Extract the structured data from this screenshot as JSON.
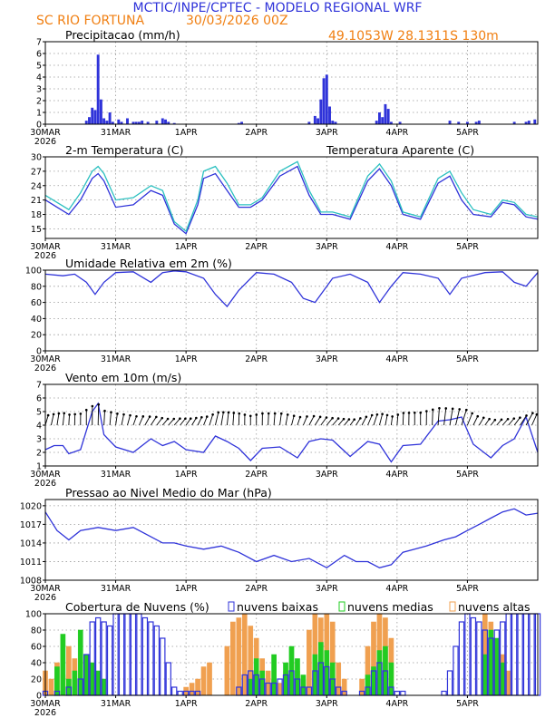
{
  "header": {
    "title": "MCTIC/INPE/CPTEC - MODELO REGIONAL WRF",
    "location": "SC RIO FORTUNA",
    "run": "30/03/2026 00Z",
    "coords": "49.1053W  28.1311S  130m",
    "title_color": "#2f33d9",
    "info_color": "#f07f12"
  },
  "x_axis": {
    "ticks": [
      {
        "label": "30MAR",
        "sub": "2026",
        "hour": 0
      },
      {
        "label": "31MAR",
        "sub": "",
        "hour": 24
      },
      {
        "label": "1APR",
        "sub": "",
        "hour": 48
      },
      {
        "label": "2APR",
        "sub": "",
        "hour": 72
      },
      {
        "label": "3APR",
        "sub": "",
        "hour": 96
      },
      {
        "label": "4APR",
        "sub": "",
        "hour": 120
      },
      {
        "label": "5APR",
        "sub": "",
        "hour": 144
      }
    ],
    "range_hours": [
      0,
      168
    ]
  },
  "chart_data": [
    {
      "type": "bar",
      "id": "precip",
      "title": "Precipitacao (mm/h)",
      "ylim": [
        0,
        7
      ],
      "yticks": [
        0,
        1,
        2,
        3,
        4,
        5,
        6,
        7
      ],
      "color": "#2f33d9",
      "points": [
        {
          "h": 14,
          "v": 0.3
        },
        {
          "h": 15,
          "v": 0.6
        },
        {
          "h": 16,
          "v": 1.4
        },
        {
          "h": 17,
          "v": 1.2
        },
        {
          "h": 18,
          "v": 5.9
        },
        {
          "h": 19,
          "v": 2.1
        },
        {
          "h": 20,
          "v": 0.5
        },
        {
          "h": 21,
          "v": 0.3
        },
        {
          "h": 22,
          "v": 1.0
        },
        {
          "h": 23,
          "v": 0.2
        },
        {
          "h": 25,
          "v": 0.4
        },
        {
          "h": 26,
          "v": 0.2
        },
        {
          "h": 28,
          "v": 0.5
        },
        {
          "h": 30,
          "v": 0.2
        },
        {
          "h": 31,
          "v": 0.2
        },
        {
          "h": 32,
          "v": 0.2
        },
        {
          "h": 33,
          "v": 0.3
        },
        {
          "h": 35,
          "v": 0.2
        },
        {
          "h": 38,
          "v": 0.3
        },
        {
          "h": 40,
          "v": 0.5
        },
        {
          "h": 41,
          "v": 0.4
        },
        {
          "h": 42,
          "v": 0.2
        },
        {
          "h": 44,
          "v": 0.1
        },
        {
          "h": 66,
          "v": 0.1
        },
        {
          "h": 67,
          "v": 0.2
        },
        {
          "h": 90,
          "v": 0.2
        },
        {
          "h": 92,
          "v": 0.7
        },
        {
          "h": 93,
          "v": 0.5
        },
        {
          "h": 94,
          "v": 2.1
        },
        {
          "h": 95,
          "v": 3.9
        },
        {
          "h": 96,
          "v": 4.2
        },
        {
          "h": 97,
          "v": 1.5
        },
        {
          "h": 98,
          "v": 0.3
        },
        {
          "h": 99,
          "v": 0.2
        },
        {
          "h": 113,
          "v": 0.3
        },
        {
          "h": 114,
          "v": 1.0
        },
        {
          "h": 115,
          "v": 0.6
        },
        {
          "h": 116,
          "v": 1.7
        },
        {
          "h": 117,
          "v": 1.3
        },
        {
          "h": 118,
          "v": 0.2
        },
        {
          "h": 121,
          "v": 0.2
        },
        {
          "h": 138,
          "v": 0.3
        },
        {
          "h": 141,
          "v": 0.2
        },
        {
          "h": 144,
          "v": 0.2
        },
        {
          "h": 147,
          "v": 0.2
        },
        {
          "h": 148,
          "v": 0.3
        },
        {
          "h": 160,
          "v": 0.2
        },
        {
          "h": 164,
          "v": 0.2
        },
        {
          "h": 165,
          "v": 0.3
        },
        {
          "h": 167,
          "v": 0.4
        }
      ]
    },
    {
      "type": "line",
      "id": "temperature",
      "title": "2-m Temperatura (C)",
      "legend2": "Temperatura Aparente (C)",
      "ylim": [
        13,
        30
      ],
      "yticks": [
        15,
        18,
        21,
        24,
        27,
        30
      ],
      "series": [
        {
          "name": "2-m Temperatura (C)",
          "color": "#2f33d9",
          "x": [
            0,
            4,
            8,
            12,
            16,
            18,
            20,
            24,
            30,
            36,
            40,
            44,
            48,
            52,
            54,
            58,
            62,
            66,
            70,
            74,
            80,
            86,
            90,
            94,
            98,
            104,
            110,
            114,
            118,
            122,
            128,
            134,
            138,
            142,
            146,
            152,
            156,
            160,
            164,
            168
          ],
          "y": [
            21,
            19.5,
            18,
            21,
            25.5,
            26.5,
            25,
            19.5,
            20,
            23,
            22,
            16,
            14,
            20,
            25.5,
            26.5,
            23,
            19.5,
            19.5,
            21,
            26,
            28,
            22,
            18,
            18,
            17,
            25,
            27.5,
            24,
            18,
            17,
            24.5,
            26,
            21,
            18,
            17.5,
            20.5,
            20,
            17.5,
            17
          ]
        },
        {
          "name": "Temperatura Aparente (C)",
          "color": "#2bc0c0",
          "x": [
            0,
            4,
            8,
            12,
            16,
            18,
            20,
            24,
            30,
            36,
            40,
            44,
            48,
            52,
            54,
            58,
            62,
            66,
            70,
            74,
            80,
            86,
            90,
            94,
            98,
            104,
            110,
            114,
            118,
            122,
            128,
            134,
            138,
            142,
            146,
            152,
            156,
            160,
            164,
            168
          ],
          "y": [
            22,
            20.5,
            19,
            22.5,
            27,
            28,
            26.5,
            21,
            21.5,
            24,
            23,
            16.5,
            14.5,
            21,
            27,
            28,
            24.5,
            20,
            20,
            21.5,
            27,
            29,
            23,
            18.5,
            18.5,
            17.5,
            26,
            28.5,
            25,
            18.5,
            17.5,
            25.5,
            27,
            22.5,
            19,
            18,
            21,
            20.5,
            18,
            17.5
          ]
        }
      ]
    },
    {
      "type": "line",
      "id": "humidity",
      "title": "Umidade Relativa em 2m (%)",
      "ylim": [
        0,
        100
      ],
      "yticks": [
        0,
        20,
        40,
        60,
        80,
        100
      ],
      "series": [
        {
          "name": "Umidade Relativa em 2m (%)",
          "color": "#2f33d9",
          "x": [
            0,
            6,
            10,
            14,
            17,
            20,
            24,
            30,
            36,
            40,
            44,
            48,
            54,
            58,
            62,
            66,
            72,
            78,
            84,
            88,
            92,
            98,
            104,
            110,
            114,
            118,
            122,
            128,
            134,
            138,
            142,
            150,
            156,
            160,
            164,
            168
          ],
          "y": [
            95,
            93,
            95,
            85,
            70,
            85,
            97,
            98,
            85,
            97,
            99,
            98,
            90,
            70,
            55,
            75,
            97,
            95,
            85,
            65,
            60,
            90,
            95,
            85,
            60,
            80,
            97,
            95,
            90,
            70,
            90,
            97,
            98,
            85,
            80,
            97
          ]
        }
      ]
    },
    {
      "type": "line",
      "id": "wind",
      "title": "Vento em 10m (m/s)",
      "ylim": [
        1,
        7
      ],
      "yticks": [
        1,
        2,
        3,
        4,
        5,
        6,
        7
      ],
      "series": [
        {
          "name": "Vento em 10m (m/s)",
          "color": "#2f33d9",
          "x": [
            0,
            3,
            6,
            8,
            12,
            16,
            18,
            20,
            24,
            30,
            36,
            40,
            44,
            48,
            54,
            58,
            62,
            66,
            70,
            74,
            80,
            86,
            90,
            94,
            98,
            104,
            110,
            114,
            118,
            122,
            128,
            134,
            138,
            142,
            146,
            152,
            156,
            160,
            164,
            168
          ],
          "y": [
            2.2,
            2.5,
            2.5,
            1.9,
            2.2,
            5.0,
            5.6,
            3.3,
            2.4,
            2.0,
            3.0,
            2.5,
            2.8,
            2.2,
            2.0,
            3.2,
            2.8,
            2.3,
            1.4,
            2.3,
            2.4,
            1.6,
            2.8,
            3.0,
            2.9,
            1.7,
            2.8,
            2.6,
            1.3,
            2.5,
            2.6,
            4.3,
            4.4,
            4.6,
            2.6,
            1.6,
            2.5,
            3.0,
            4.6,
            2.0
          ]
        }
      ]
    },
    {
      "type": "line",
      "id": "pressure",
      "title": "Pressao ao Nivel Medio do Mar (hPa)",
      "ylim": [
        1008,
        1021
      ],
      "yticks": [
        1008,
        1011,
        1014,
        1017,
        1020
      ],
      "series": [
        {
          "name": "Pressao ao Nivel Medio do Mar (hPa)",
          "color": "#2f33d9",
          "x": [
            0,
            4,
            8,
            12,
            18,
            24,
            30,
            36,
            40,
            44,
            48,
            54,
            60,
            66,
            72,
            78,
            84,
            90,
            96,
            102,
            106,
            110,
            114,
            118,
            122,
            126,
            130,
            136,
            140,
            144,
            148,
            152,
            156,
            160,
            164,
            168
          ],
          "y": [
            1019,
            1016,
            1014.5,
            1016,
            1016.5,
            1016,
            1016.5,
            1015,
            1014,
            1014,
            1013.5,
            1013,
            1013.5,
            1012.5,
            1011,
            1012,
            1011,
            1011.5,
            1010,
            1012,
            1011,
            1011,
            1010,
            1010.5,
            1012.5,
            1013,
            1013.5,
            1014.5,
            1015,
            1016,
            1017,
            1018,
            1019,
            1019.5,
            1018.5,
            1018.8
          ]
        }
      ]
    },
    {
      "type": "bar",
      "id": "clouds",
      "title": "Cobertura de Nuvens (%)",
      "ylim": [
        0,
        100
      ],
      "yticks": [
        0,
        20,
        40,
        60,
        80,
        100
      ],
      "series": [
        {
          "name": "nuvens baixas",
          "color": "#2f33d9",
          "x": [
            0,
            4,
            8,
            12,
            14,
            16,
            18,
            20,
            22,
            24,
            26,
            28,
            30,
            32,
            34,
            36,
            38,
            40,
            42,
            44,
            46,
            48,
            50,
            52,
            54,
            56,
            58,
            60,
            62,
            64,
            66,
            68,
            70,
            72,
            74,
            76,
            78,
            80,
            82,
            84,
            86,
            88,
            90,
            92,
            94,
            96,
            98,
            100,
            102,
            104,
            106,
            108,
            110,
            112,
            114,
            116,
            118,
            120,
            122,
            124,
            126,
            128,
            130,
            132,
            134,
            136,
            138,
            140,
            142,
            144,
            146,
            148,
            150,
            152,
            154,
            156,
            158,
            160,
            162,
            164,
            166,
            168
          ],
          "y": [
            5,
            5,
            10,
            20,
            50,
            90,
            95,
            90,
            85,
            100,
            100,
            100,
            100,
            100,
            95,
            90,
            85,
            70,
            40,
            10,
            5,
            5,
            5,
            5,
            0,
            0,
            0,
            0,
            0,
            0,
            10,
            25,
            30,
            25,
            20,
            15,
            15,
            20,
            25,
            30,
            20,
            10,
            10,
            30,
            40,
            35,
            20,
            10,
            5,
            0,
            0,
            5,
            10,
            30,
            40,
            30,
            10,
            5,
            5,
            0,
            0,
            0,
            0,
            0,
            0,
            5,
            30,
            60,
            90,
            100,
            95,
            90,
            80,
            70,
            80,
            90,
            100,
            100,
            100,
            100,
            100,
            100
          ]
        },
        {
          "name": "nuvens medias",
          "color": "#22cc22",
          "x": [
            4,
            6,
            8,
            10,
            12,
            14,
            16,
            18,
            20,
            70,
            72,
            74,
            78,
            82,
            84,
            86,
            88,
            92,
            94,
            96,
            98,
            110,
            112,
            114,
            116,
            118,
            150,
            152,
            154,
            156
          ],
          "y": [
            35,
            75,
            20,
            30,
            80,
            50,
            40,
            30,
            20,
            20,
            45,
            30,
            50,
            40,
            60,
            45,
            25,
            50,
            65,
            55,
            40,
            25,
            35,
            55,
            60,
            40,
            50,
            80,
            70,
            40
          ]
        },
        {
          "name": "nuvens altas",
          "color": "#f0a050",
          "x": [
            0,
            2,
            4,
            6,
            8,
            10,
            12,
            14,
            16,
            48,
            50,
            52,
            54,
            56,
            62,
            64,
            66,
            68,
            70,
            72,
            74,
            76,
            78,
            80,
            82,
            84,
            86,
            88,
            90,
            92,
            94,
            96,
            98,
            100,
            102,
            108,
            110,
            112,
            114,
            116,
            118,
            150,
            152,
            154,
            156,
            158
          ],
          "y": [
            30,
            20,
            40,
            25,
            60,
            45,
            20,
            30,
            25,
            10,
            15,
            20,
            35,
            40,
            60,
            90,
            95,
            100,
            85,
            70,
            45,
            30,
            20,
            15,
            30,
            40,
            30,
            20,
            80,
            100,
            95,
            100,
            90,
            40,
            20,
            20,
            60,
            90,
            100,
            95,
            70,
            100,
            90,
            60,
            50,
            30
          ]
        }
      ]
    }
  ]
}
